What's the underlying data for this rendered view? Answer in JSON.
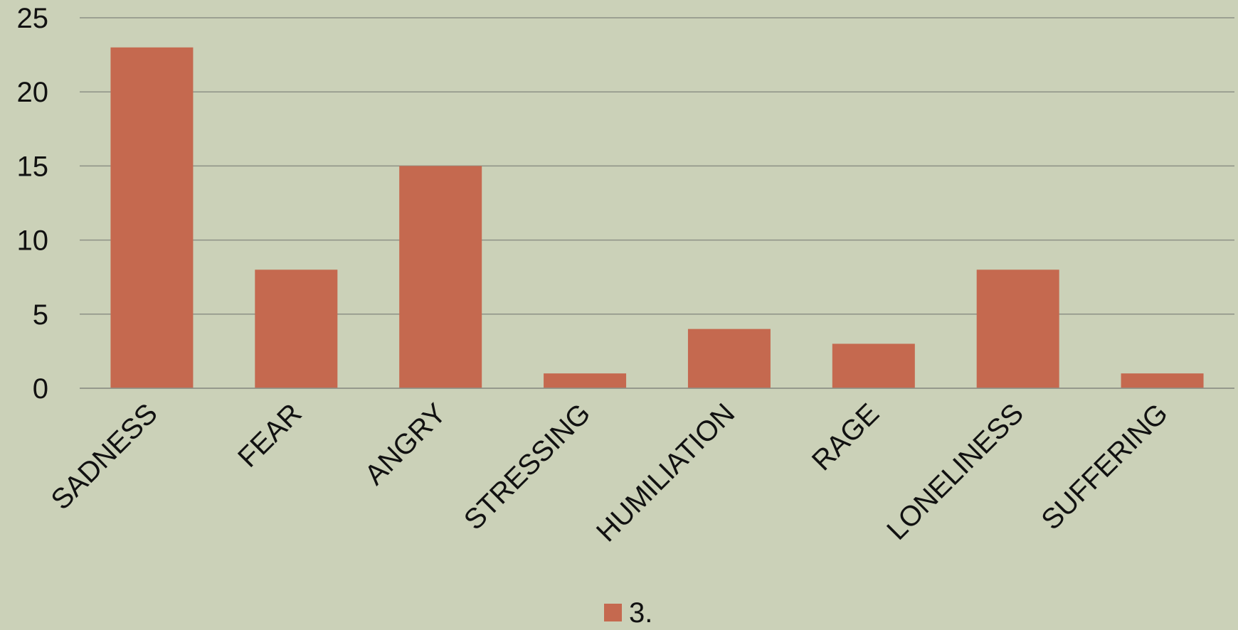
{
  "chart_data": {
    "type": "bar",
    "categories": [
      "SADNESS",
      "FEAR",
      "ANGRY",
      "STRESSING",
      "HUMILIATION",
      "RAGE",
      "LONELINESS",
      "SUFFERING"
    ],
    "series": [
      {
        "name": "3.",
        "values": [
          23,
          8,
          15,
          1,
          4,
          3,
          8,
          1
        ]
      }
    ],
    "title": "",
    "xlabel": "",
    "ylabel": "",
    "ylim": [
      0,
      25
    ],
    "yticks": [
      "0",
      "5",
      "10",
      "15",
      "20",
      "25"
    ],
    "grid": true,
    "legend_position": "bottom",
    "colors": {
      "background": "#cbd1b8",
      "bar": "#c5694f",
      "gridline": "#8d9186",
      "text": "#111111"
    }
  }
}
